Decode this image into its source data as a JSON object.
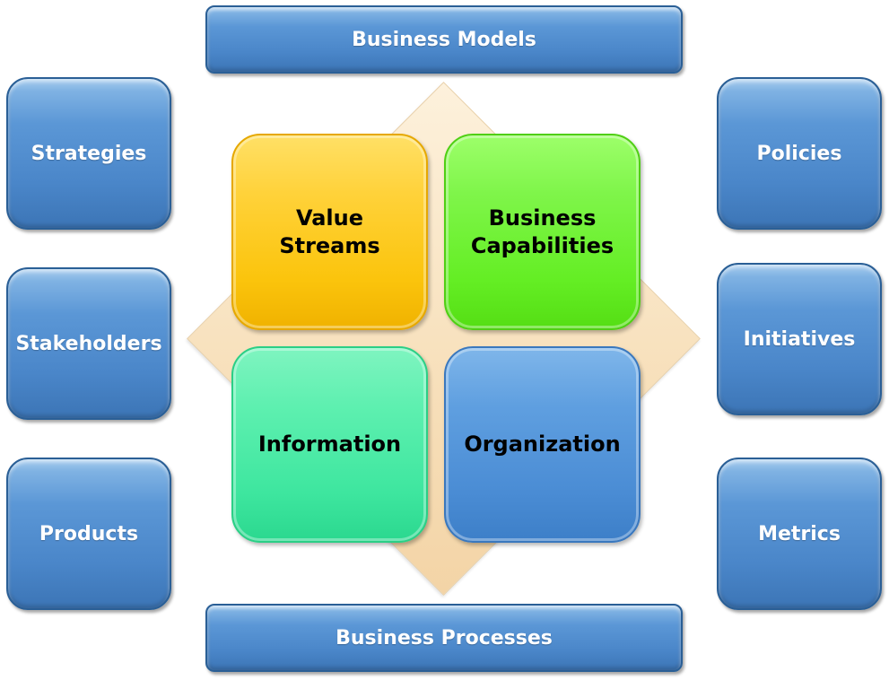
{
  "top_bar": {
    "label": "Business Models"
  },
  "bottom_bar": {
    "label": "Business Processes"
  },
  "left_items": [
    {
      "label": "Strategies"
    },
    {
      "label": "Stakeholders"
    },
    {
      "label": "Products"
    }
  ],
  "right_items": [
    {
      "label": "Policies"
    },
    {
      "label": "Initiatives"
    },
    {
      "label": "Metrics"
    }
  ],
  "core": {
    "value_streams": "Value\nStreams",
    "business_capabilities": "Business\nCapabilities",
    "information": "Information",
    "organization": "Organization"
  },
  "colors": {
    "outer_blue": "#4a86c9",
    "value_streams": "#fbc40c",
    "business_capabilities": "#64ee24",
    "information": "#3ee69f",
    "organization": "#4a8cd4",
    "diamond": "#f8e2bf"
  }
}
